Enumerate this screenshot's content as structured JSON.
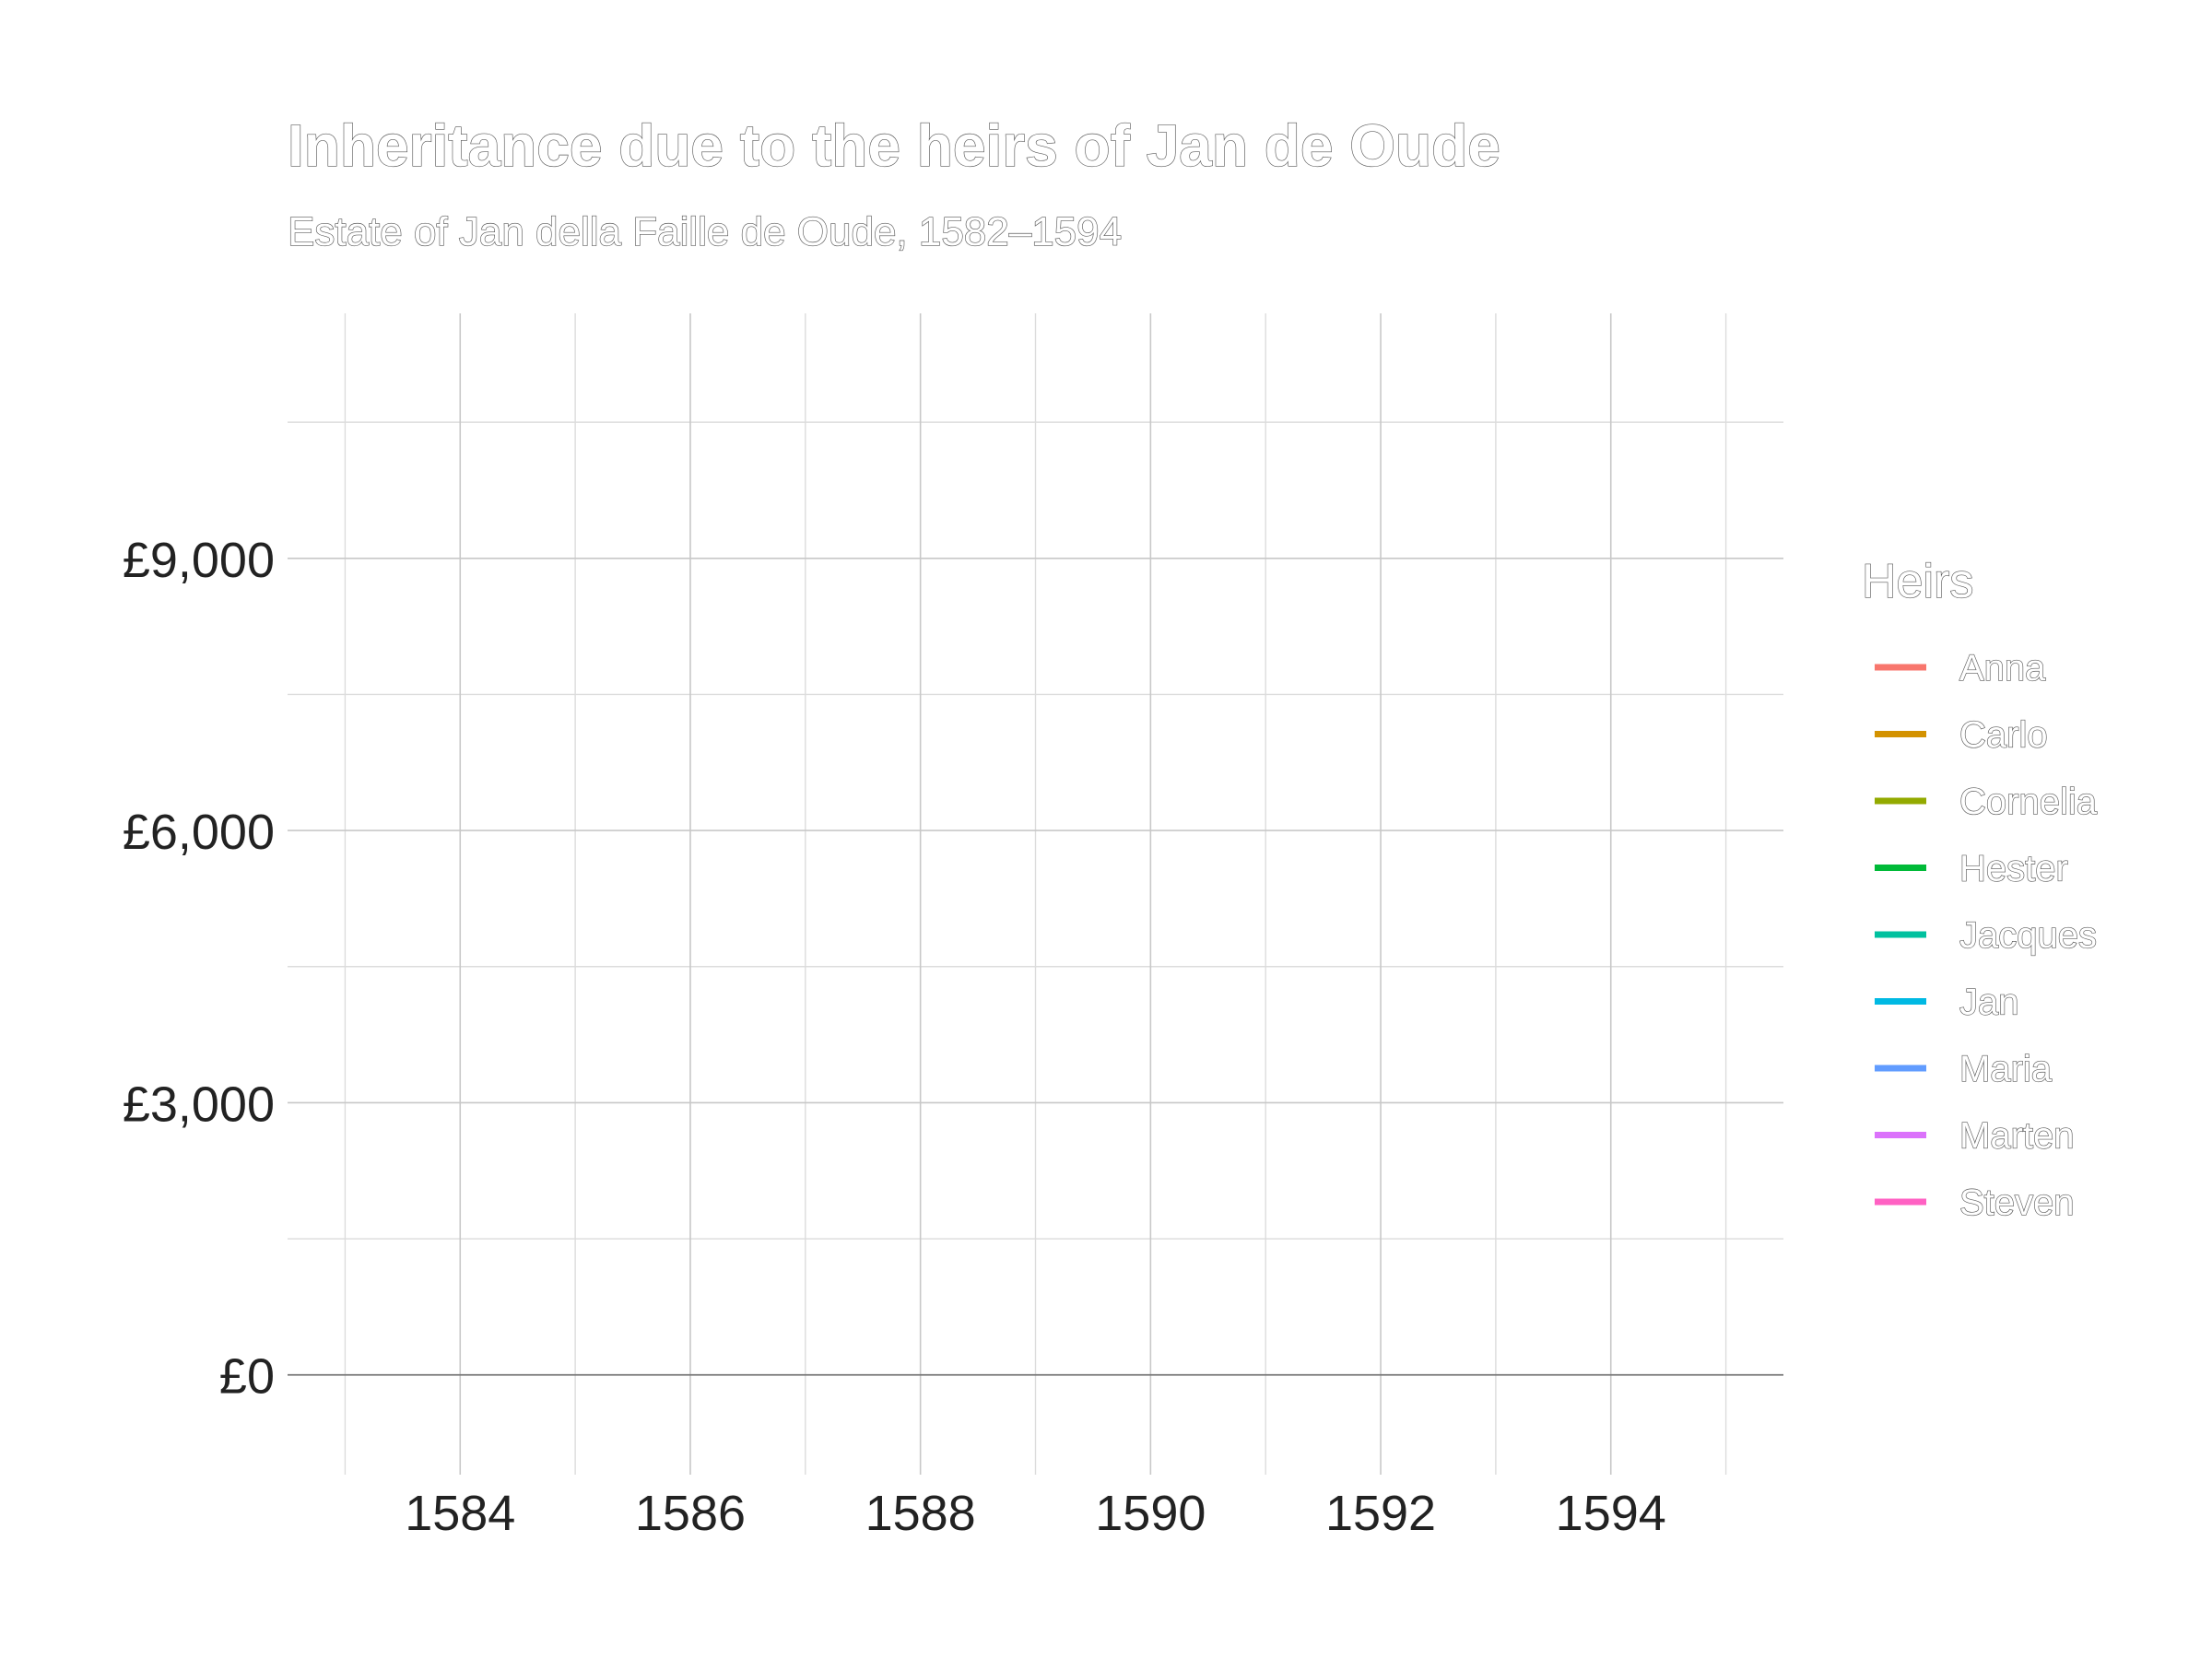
{
  "chart_data": {
    "type": "line",
    "title": "Inheritance due to the heirs of Jan de Oude",
    "subtitle": "Estate of Jan della Faille de Oude, 1582–1594",
    "xlabel": "",
    "ylabel": "",
    "xlim": [
      1582.5,
      1595.5
    ],
    "ylim": [
      -1100,
      11700
    ],
    "x_ticks": [
      1584,
      1586,
      1588,
      1590,
      1592,
      1594
    ],
    "x_tick_labels": [
      "1584",
      "1586",
      "1588",
      "1590",
      "1592",
      "1594"
    ],
    "x_minor_ticks": [
      1583,
      1585,
      1587,
      1589,
      1591,
      1593,
      1595
    ],
    "y_ticks": [
      0,
      3000,
      6000,
      9000
    ],
    "y_tick_labels": [
      "£0",
      "£3,000",
      "£6,000",
      "£9,000"
    ],
    "y_minor_ticks": [
      1500,
      4500,
      7500,
      10500
    ],
    "grid": true,
    "legend": {
      "title": "Heirs",
      "position": "right"
    },
    "series": [
      {
        "name": "Anna",
        "color": "#F8766D",
        "values": []
      },
      {
        "name": "Carlo",
        "color": "#D39200",
        "values": []
      },
      {
        "name": "Cornelia",
        "color": "#93AA00",
        "values": []
      },
      {
        "name": "Hester",
        "color": "#00BA38",
        "values": []
      },
      {
        "name": "Jacques",
        "color": "#00C19F",
        "values": []
      },
      {
        "name": "Jan",
        "color": "#00B9E3",
        "values": []
      },
      {
        "name": "Maria",
        "color": "#619CFF",
        "values": []
      },
      {
        "name": "Marten",
        "color": "#DB72FB",
        "values": []
      },
      {
        "name": "Steven",
        "color": "#FF61C3",
        "values": []
      }
    ]
  }
}
